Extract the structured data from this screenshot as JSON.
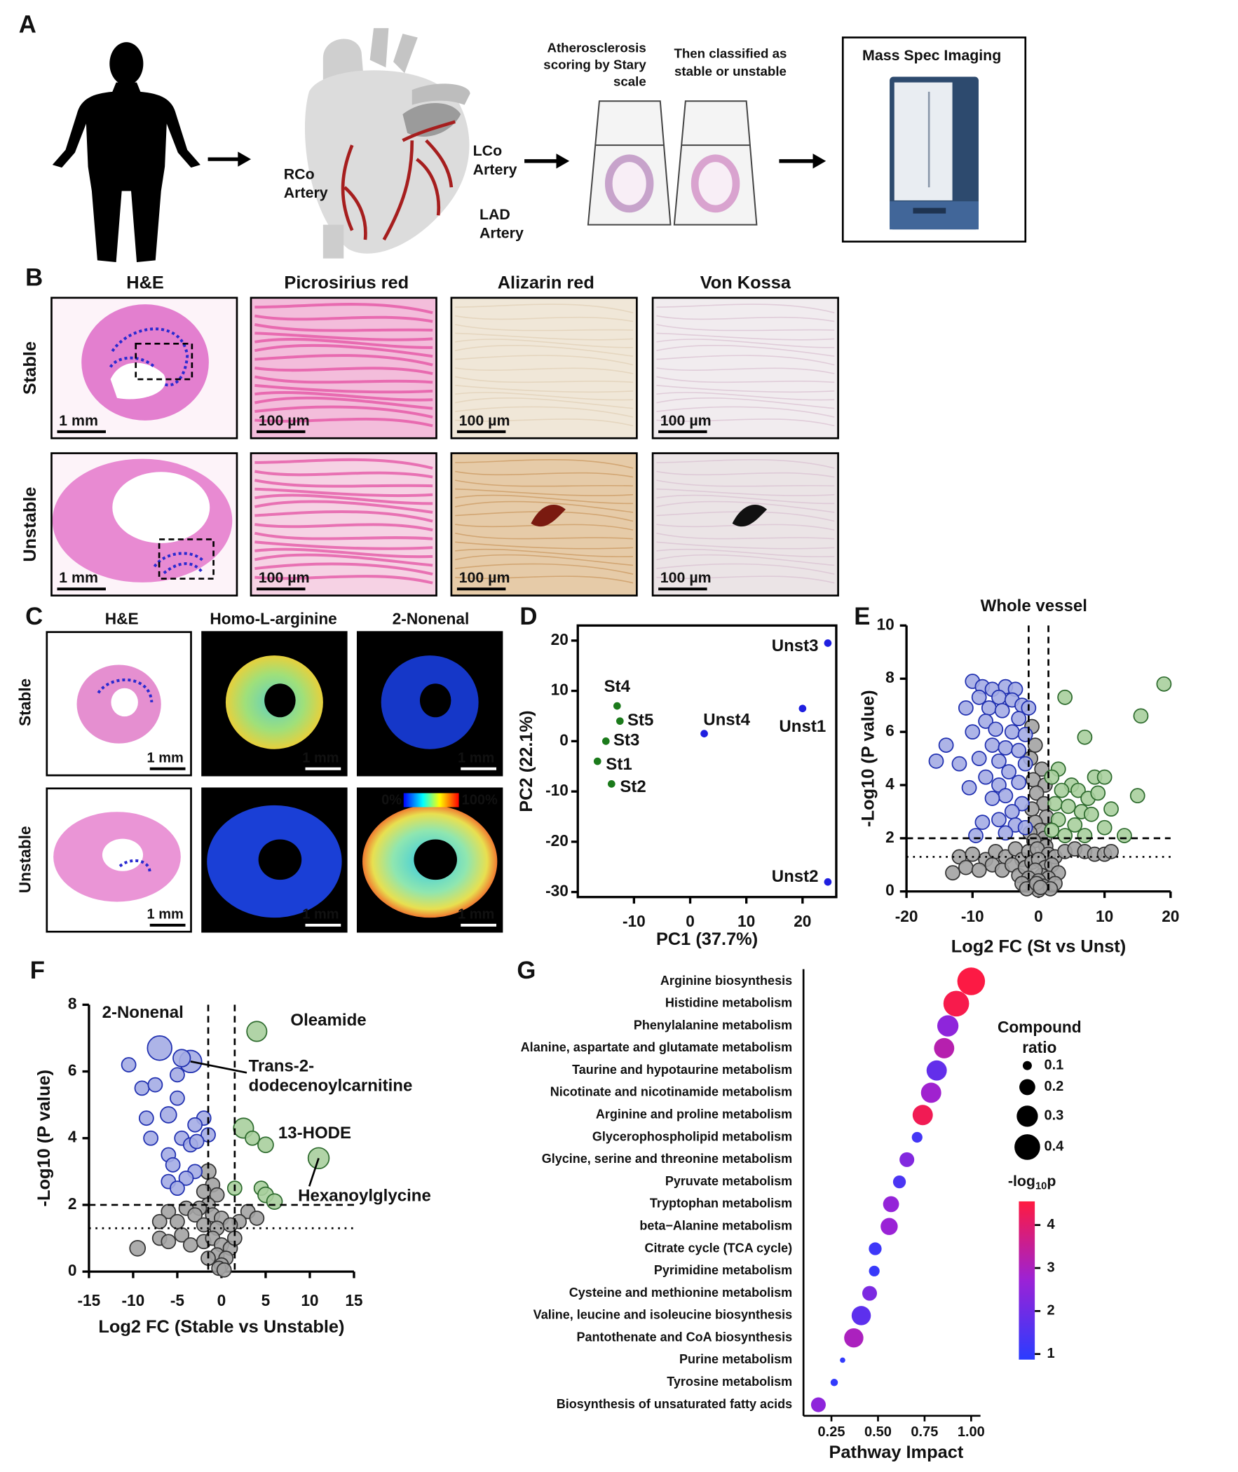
{
  "panel_labels": [
    "A",
    "B",
    "C",
    "D",
    "E",
    "F",
    "G"
  ],
  "panel_A": {
    "rco": [
      "RCo",
      "Artery"
    ],
    "lco": [
      "LCo",
      "Artery"
    ],
    "lad": [
      "LAD",
      "Artery"
    ],
    "scoring": [
      "Atherosclerosis",
      "scoring by Stary",
      "scale"
    ],
    "classified": [
      "Then classified as",
      "stable or unstable"
    ],
    "instrument": "Mass Spec Imaging"
  },
  "panel_B": {
    "columns": [
      "H&E",
      "Picrosirius red",
      "Alizarin red",
      "Von Kossa"
    ],
    "rows": [
      "Stable",
      "Unstable"
    ],
    "scale_bars": [
      [
        "1 mm",
        "100 µm",
        "100 µm",
        "100 µm"
      ],
      [
        "1 mm",
        "100 µm",
        "100 µm",
        "100 µm"
      ]
    ]
  },
  "panel_C": {
    "columns": [
      "H&E",
      "Homo-L-arginine",
      "2-Nonenal"
    ],
    "rows": [
      "Stable",
      "Unstable"
    ],
    "scale_bars": [
      [
        "1 mm",
        "1 mm",
        "1 mm"
      ],
      [
        "1 mm",
        "1 mm",
        "1 mm"
      ]
    ],
    "colorbar": [
      "0%",
      "100%"
    ]
  },
  "chart_data": [
    {
      "type": "scatter",
      "xlabel": "PC1 (37.7%)",
      "ylabel": "PC2 (22.1%)",
      "xlim": [
        -20,
        26
      ],
      "ylim": [
        -31,
        23
      ],
      "xticks": [
        -10,
        0,
        10,
        20
      ],
      "yticks": [
        -30,
        -20,
        -10,
        0,
        10,
        20
      ],
      "series": [
        {
          "color": "#1b7a1b",
          "x": [
            -13,
            -12.5,
            -15,
            -16.5,
            -14
          ],
          "values": [
            7,
            4,
            0,
            -4,
            -8.5
          ],
          "point_labels": [
            "St4",
            "St5",
            "St3",
            "St1",
            "St2"
          ]
        },
        {
          "color": "#1f1fe0",
          "x": [
            2.5,
            24.5,
            20,
            24.5
          ],
          "values": [
            1.5,
            19.5,
            6.5,
            -28
          ],
          "point_labels": [
            "Unst4",
            "Unst3",
            "Unst1",
            "Unst2"
          ]
        }
      ]
    },
    {
      "type": "volcano",
      "title": "Whole vessel",
      "xlabel": "Log2 FC (St vs Unst)",
      "ylabel": "-Log10 (P value)",
      "xlim": [
        -20,
        20
      ],
      "ylim": [
        0,
        10
      ],
      "xticks": [
        -20,
        -10,
        0,
        10,
        20
      ],
      "yticks": [
        0,
        2,
        4,
        6,
        8,
        10
      ],
      "thresholds": {
        "x": [
          -1.5,
          1.5
        ],
        "y_dashed": 2,
        "y_dotted": 1.3
      },
      "series": [
        {
          "color": "#333333",
          "fill": "#a3a3a3",
          "x": [
            -1,
            -0.5,
            -1.2,
            0.5,
            -0.8,
            1,
            -0.3,
            0.8,
            -1,
            1.2,
            -0.5,
            0.3,
            -1.3,
            0.9,
            -0.7,
            1.1,
            -12,
            -10,
            -8,
            -6.5,
            -5,
            -3.5,
            -2.5,
            -1.5,
            -0.2,
            1.5,
            2.5,
            4,
            5.5,
            7,
            8.5,
            10,
            11,
            -13,
            -11,
            -9,
            -7,
            -5.5,
            -4,
            -3,
            -2,
            -1,
            0,
            1,
            2,
            3,
            0.5,
            -0.5,
            -1.5,
            1.5,
            -2.5,
            2.5,
            0,
            -0.8,
            0.7,
            0,
            -1.8,
            1.8,
            -0.3,
            0.3
          ],
          "values": [
            6.2,
            5.5,
            5,
            4.6,
            4.2,
            4,
            3.7,
            3.3,
            3.1,
            2.8,
            2.6,
            2.3,
            2.2,
            2,
            1.9,
            1.7,
            1.3,
            1.4,
            1.2,
            1.5,
            1.3,
            1.6,
            1.2,
            1.5,
            1.6,
            1.4,
            1.3,
            1.5,
            1.6,
            1.5,
            1.4,
            1.4,
            1.5,
            0.7,
            0.9,
            0.8,
            1,
            0.8,
            1,
            0.6,
            0.9,
            1.1,
            1.2,
            0.9,
            1,
            0.7,
            0.6,
            0.8,
            0.5,
            0.5,
            0.3,
            0.3,
            0.4,
            0.2,
            0.2,
            0.05,
            0.1,
            0.1,
            0.3,
            0.15
          ]
        },
        {
          "color": "#1f2fb0",
          "fill": "#a4ace4",
          "x": [
            -10,
            -8.5,
            -7,
            -5,
            -3.5,
            -9,
            -6,
            -4,
            -2.5,
            -1.5,
            -11,
            -7.5,
            -5.5,
            -8,
            -3,
            -10,
            -6.5,
            -4,
            -2,
            -14,
            -7,
            -5,
            -3,
            -15.5,
            -12,
            -9,
            -6,
            -2,
            -4.5,
            -8,
            -10.5,
            -6,
            -3,
            -5,
            -7,
            -2.5,
            -4,
            -8.5,
            -6,
            -3.5,
            -9.5,
            -5,
            -2
          ],
          "values": [
            7.9,
            7.7,
            7.6,
            7.7,
            7.6,
            7.3,
            7.3,
            7.2,
            7,
            6.9,
            6.9,
            6.9,
            6.8,
            6.4,
            6.5,
            6,
            6.1,
            6,
            5.9,
            5.5,
            5.5,
            5.4,
            5.3,
            4.9,
            4.8,
            5,
            4.9,
            4.8,
            4.5,
            4.3,
            3.9,
            4,
            4.1,
            3.6,
            3.5,
            3.3,
            3,
            2.6,
            2.7,
            2.5,
            2.1,
            2.2,
            2.4
          ]
        },
        {
          "color": "#2e6b2e",
          "fill": "#a9cf9d",
          "x": [
            19,
            15.5,
            4,
            7,
            3,
            8.5,
            10,
            2,
            5,
            3.5,
            6,
            7.5,
            9,
            15,
            2.5,
            4.5,
            6.5,
            11,
            8,
            3,
            5.5,
            10,
            2,
            7,
            4,
            13
          ],
          "values": [
            7.8,
            6.6,
            7.3,
            5.8,
            4.6,
            4.3,
            4.3,
            4.3,
            4,
            3.8,
            3.8,
            3.5,
            3.7,
            3.6,
            3.3,
            3.2,
            3,
            3.1,
            2.9,
            2.7,
            2.5,
            2.4,
            2.3,
            2.1,
            2.1,
            2.1
          ]
        }
      ]
    },
    {
      "type": "volcano",
      "xlabel": "Log2 FC (Stable vs Unstable)",
      "ylabel": "-Log10 (P value)",
      "xlim": [
        -15,
        15
      ],
      "ylim": [
        0,
        8
      ],
      "xticks": [
        -15,
        -10,
        -5,
        0,
        5,
        10,
        15
      ],
      "yticks": [
        0,
        2,
        4,
        6,
        8
      ],
      "thresholds": {
        "x": [
          -1.5,
          1.5
        ],
        "y_dashed": 2,
        "y_dotted": 1.3
      },
      "series": [
        {
          "color": "#333333",
          "fill": "#a3a3a3",
          "x": [
            -1.5,
            -1,
            -2,
            -0.5,
            -1.5,
            -2.5,
            -4,
            -6,
            -3,
            -1,
            0,
            -7,
            -5,
            -2,
            -0.5,
            3,
            4,
            2,
            1,
            -9.5,
            -7,
            -6,
            -4.5,
            -3.5,
            -2,
            -1,
            0,
            1,
            -0.5,
            0.5,
            -1.5,
            0,
            -0.3,
            0.3,
            1.5
          ],
          "values": [
            3,
            2.6,
            2.4,
            2.3,
            2,
            1.9,
            1.9,
            1.8,
            1.7,
            1.7,
            1.6,
            1.5,
            1.5,
            1.4,
            1.3,
            1.8,
            1.6,
            1.5,
            1.4,
            0.7,
            1,
            0.9,
            1.1,
            0.8,
            0.9,
            1,
            0.8,
            0.7,
            0.5,
            0.4,
            0.4,
            0.2,
            0.1,
            0.05,
            1
          ],
          "sizes": [
            1.2,
            1,
            1,
            1,
            1,
            1,
            1,
            1,
            1,
            1,
            1,
            1,
            1,
            1,
            1,
            1,
            1,
            1,
            1,
            1.2,
            1,
            1,
            1,
            1,
            1,
            1,
            1,
            1,
            1,
            1,
            1,
            1,
            1,
            1,
            1
          ]
        },
        {
          "color": "#1f2fb0",
          "fill": "#a4ace4",
          "x": [
            -7,
            -3.5,
            -4.5,
            -10.5,
            -9,
            -5,
            -7.5,
            -5,
            -8.5,
            -2,
            -3,
            -1.5,
            -6,
            -4.5,
            -3.5,
            -2.8,
            -8,
            -6,
            -5.5,
            -3,
            -4,
            -6,
            -5
          ],
          "values": [
            6.7,
            6.3,
            6.4,
            6.2,
            5.5,
            5.9,
            5.6,
            5.2,
            4.6,
            4.6,
            4.4,
            4.1,
            4.7,
            4,
            3.8,
            3.9,
            4,
            3.5,
            3.2,
            3,
            2.8,
            2.7,
            2.5
          ],
          "sizes": [
            3,
            2.5,
            1.5,
            1,
            1,
            1,
            1,
            1,
            1,
            1,
            1,
            1,
            1.3,
            1,
            1,
            1,
            1,
            1,
            1,
            1,
            1,
            1,
            1
          ],
          "point_labels": [
            "2-Nonenal",
            [
              "Trans-2-",
              "dodecenoylcarnitine"
            ],
            null,
            null,
            null,
            null,
            null,
            null,
            null,
            null,
            null,
            null,
            null,
            null,
            null,
            null,
            null,
            null,
            null,
            null,
            null,
            null,
            null
          ]
        },
        {
          "color": "#2e6b2e",
          "fill": "#a9cf9d",
          "x": [
            4,
            2.5,
            3.5,
            5,
            11,
            4.5,
            1.5,
            5,
            6
          ],
          "values": [
            7.2,
            4.3,
            4,
            3.8,
            3.4,
            2.5,
            2.5,
            2.3,
            2.1
          ],
          "sizes": [
            2,
            2,
            1,
            1.2,
            2.2,
            1,
            1,
            1.2,
            1.2
          ],
          "point_labels": [
            "Oleamide",
            "13-HODE",
            null,
            null,
            "Hexanoylglycine",
            null,
            null,
            null,
            null
          ]
        }
      ]
    },
    {
      "type": "bubble",
      "xlabel": "Pathway Impact",
      "categories": [
        "Arginine biosynthesis",
        "Histidine metabolism",
        "Phenylalanine metabolism",
        "Alanine, aspartate and glutamate metabolism",
        "Taurine and hypotaurine metabolism",
        "Nicotinate and nicotinamide metabolism",
        "Arginine and proline metabolism",
        "Glycerophospholipid metabolism",
        "Glycine, serine and threonine metabolism",
        "Pyruvate metabolism",
        "Tryptophan metabolism",
        "beta−Alanine metabolism",
        "Citrate cycle (TCA cycle)",
        "Pyrimidine metabolism",
        "Cysteine and methionine metabolism",
        "Valine, leucine and isoleucine biosynthesis",
        "Pantothenate and CoA biosynthesis",
        "Purine metabolism",
        "Tyrosine metabolism",
        "Biosynthesis of unsaturated fatty acids"
      ],
      "values": [
        1,
        0.92,
        0.875,
        0.855,
        0.815,
        0.785,
        0.74,
        0.71,
        0.655,
        0.615,
        0.57,
        0.56,
        0.485,
        0.48,
        0.455,
        0.41,
        0.37,
        0.31,
        0.265,
        0.18
      ],
      "sizes": [
        0.45,
        0.4,
        0.3,
        0.28,
        0.28,
        0.28,
        0.28,
        0.12,
        0.18,
        0.15,
        0.2,
        0.22,
        0.15,
        0.12,
        0.18,
        0.26,
        0.26,
        0.06,
        0.08,
        0.18
      ],
      "color_values": [
        4.5,
        4.4,
        2.5,
        3.2,
        1.8,
        2.8,
        4.3,
        1.3,
        2.3,
        1.4,
        2.6,
        2.7,
        1.2,
        1.1,
        2.2,
        1.7,
        3,
        1,
        1,
        2.5
      ],
      "xlim": [
        0.1,
        1.05
      ],
      "xticks": [
        {
          "value": 0.25,
          "label": "0.25"
        },
        {
          "value": 0.5,
          "label": "0.50"
        },
        {
          "value": 0.75,
          "label": "0.75"
        },
        {
          "value": 1,
          "label": "1.00"
        }
      ],
      "size_legend": {
        "title": [
          "Compound",
          "ratio"
        ],
        "values": [
          0.1,
          0.2,
          0.3,
          0.4
        ]
      },
      "color_legend": {
        "title": [
          "-log",
          "10",
          "p"
        ],
        "lim": [
          0.87,
          4.55
        ],
        "ticks": [
          1,
          2,
          3,
          4
        ],
        "colormap": [
          "#2a3cff",
          "#9b22d6",
          "#ff1a40"
        ]
      }
    }
  ]
}
